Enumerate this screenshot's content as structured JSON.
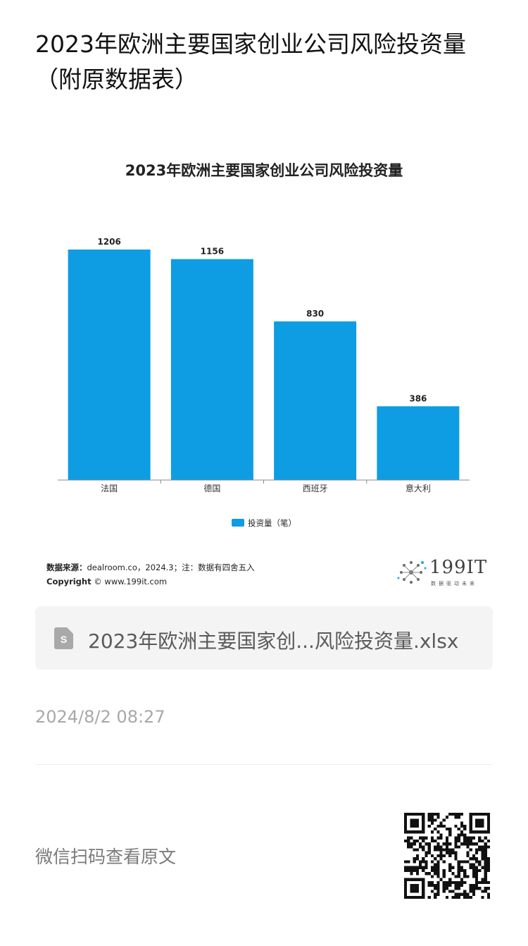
{
  "page": {
    "title": "2023年欧洲主要国家创业公司风险投资量（附原数据表）"
  },
  "chart_data": {
    "type": "bar",
    "title": "2023年欧洲主要国家创业公司风险投资量",
    "categories": [
      "法国",
      "德国",
      "西班牙",
      "意大利"
    ],
    "series": [
      {
        "name": "投资量（笔）",
        "values": [
          1206,
          1156,
          830,
          386
        ],
        "color": "#0e9de3"
      }
    ],
    "ylim": [
      0,
      1206
    ],
    "grid": false,
    "data_labels": true,
    "legend_position": "bottom-center"
  },
  "chart_footer": {
    "source_label": "数据来源：",
    "source_text": "dealroom.co，2024.3；注：数据有四舍五入",
    "copyright_label": "Copyright",
    "copyright_text": "© www.199it.com",
    "logo_text": "199IT",
    "logo_sub": "数据驱动未来"
  },
  "attachment": {
    "file_name": "2023年欧洲主要国家创...风险投资量.xlsx",
    "icon": "spreadsheet-file-icon",
    "icon_letter": "S"
  },
  "meta": {
    "timestamp": "2024/8/2 08:27"
  },
  "qr_section": {
    "hint": "微信扫码查看原文",
    "icon": "qr-code-icon"
  },
  "colors": {
    "bar": "#0e9de3",
    "muted_text": "#a8a8a8",
    "card_bg": "#f4f4f4"
  }
}
